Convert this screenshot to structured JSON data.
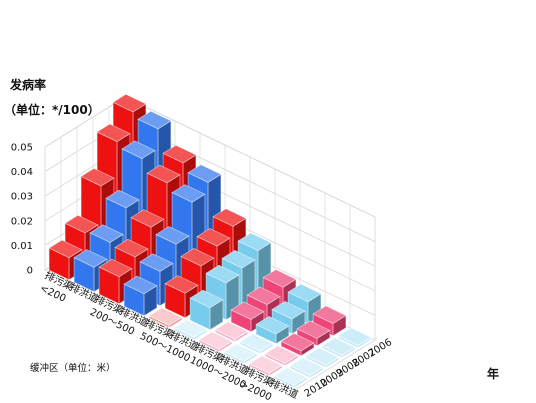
{
  "chart_data": {
    "type": "bar",
    "title": "发病率",
    "ylabel": "（单位：*/100）",
    "xlabel": "缓冲区（单位：米）",
    "depth_label": "年",
    "ylim": [
      0,
      0.05
    ],
    "yticks": [
      "0",
      "0.01",
      "0.02",
      "0.03",
      "0.04",
      "0.05"
    ],
    "categories": [
      "排污渠",
      "排洪道",
      "排污渠",
      "排洪道",
      "排污渠",
      "排洪道",
      "排污渠",
      "排洪道",
      "排污渠",
      "排洪道"
    ],
    "zone_labels": [
      "<200",
      "200～500",
      "500～1000",
      "1000～2000",
      ">2000"
    ],
    "years": [
      "2006",
      "2007",
      "2008",
      "2009",
      "2010"
    ],
    "series": [
      {
        "name": "2006",
        "values": [
          0.052,
          0.05,
          0.041,
          0.038,
          0.025,
          0.02,
          0.01,
          0.009,
          0.005,
          0.001
        ]
      },
      {
        "name": "2007",
        "values": [
          0.044,
          0.042,
          0.037,
          0.034,
          0.021,
          0.017,
          0.007,
          0.006,
          0.003,
          0.001
        ]
      },
      {
        "name": "2008",
        "values": [
          0.03,
          0.026,
          0.023,
          0.021,
          0.017,
          0.015,
          0.005,
          0.004,
          0.002,
          0.001
        ]
      },
      {
        "name": "2009",
        "values": [
          0.015,
          0.016,
          0.015,
          0.014,
          0.01,
          0.009,
          0.001,
          0.001,
          0.001,
          0.001
        ]
      },
      {
        "name": "2010",
        "values": [
          0.009,
          0.01,
          0.011,
          0.009,
          0.001,
          0.001,
          0.001,
          0.001,
          0.001,
          0.001
        ]
      }
    ],
    "colors": [
      "#ee1111",
      "#3377ee",
      "#ee1111",
      "#3377ee",
      "#ee1111",
      "#77ccee",
      "#ee4477",
      "#77ccee",
      "#ee4477",
      "#77ccee"
    ],
    "grid": true
  }
}
